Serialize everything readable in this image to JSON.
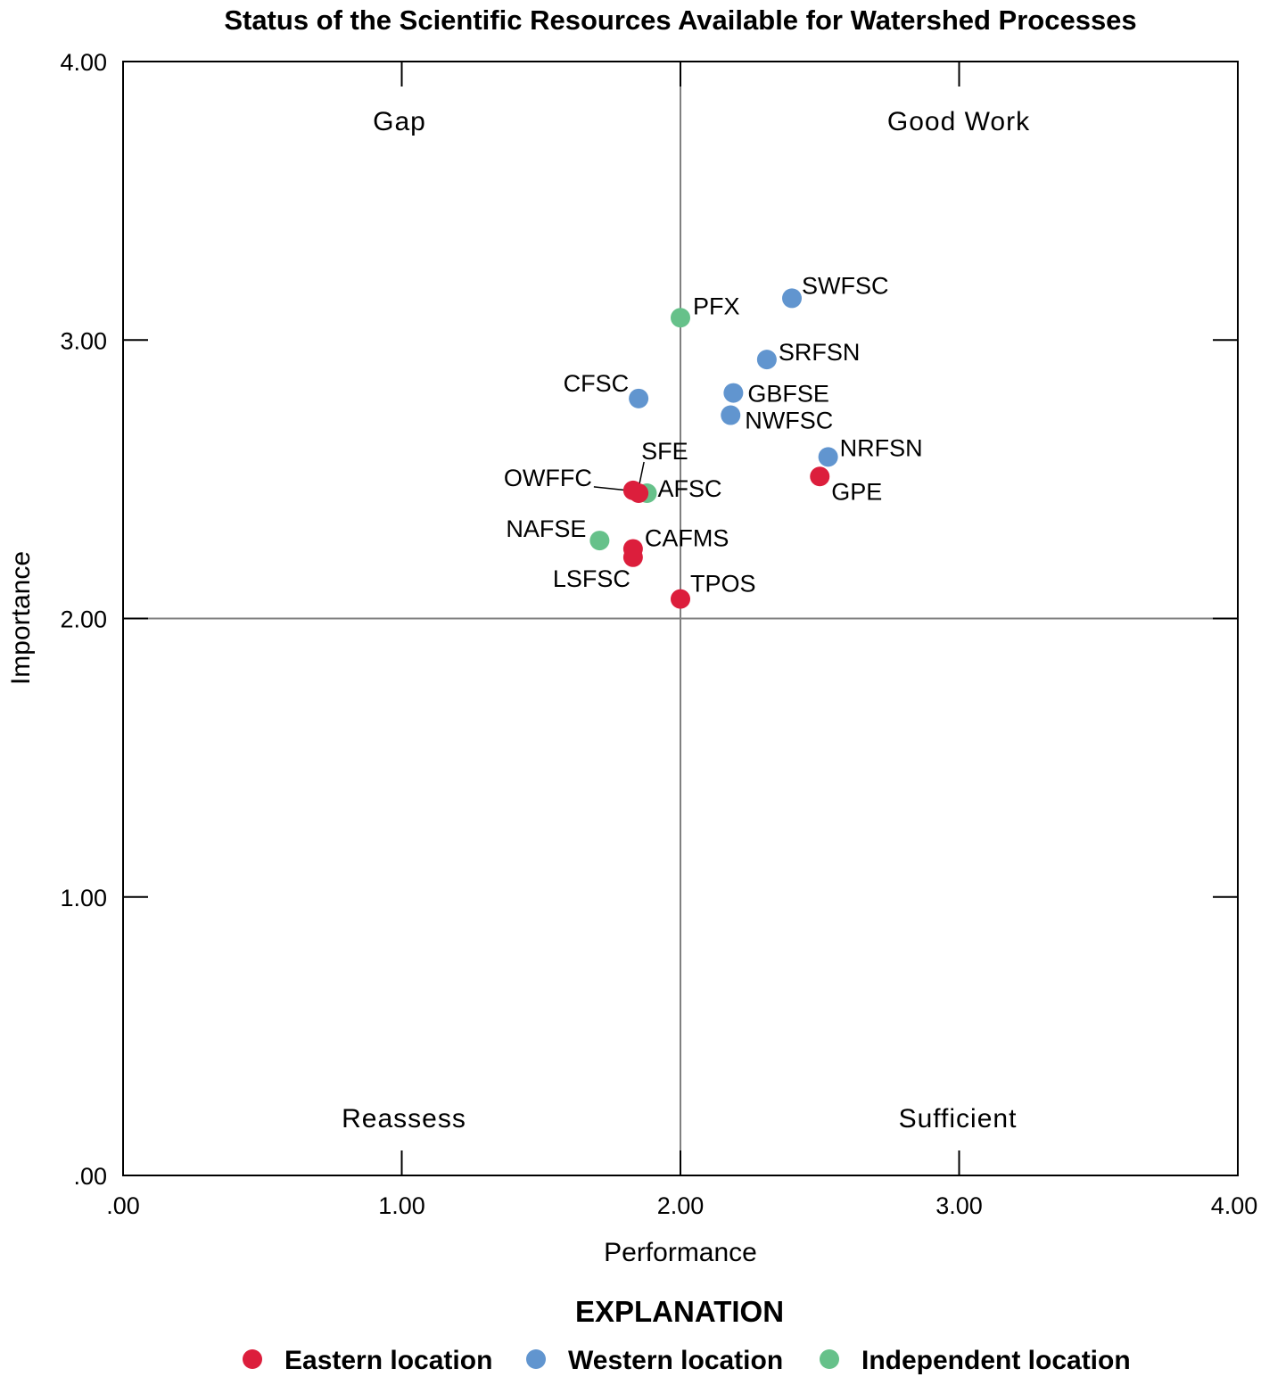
{
  "chart_data": {
    "type": "scatter",
    "title": "Status of the Scientific Resources Available for Watershed Processes",
    "xlabel": "Performance",
    "ylabel": "Importance",
    "xlim": [
      0,
      4
    ],
    "ylim": [
      0,
      4
    ],
    "x_ticks": [
      0,
      1,
      2,
      3,
      4
    ],
    "x_tick_labels": [
      ".00",
      "1.00",
      "2.00",
      "3.00",
      "4.00"
    ],
    "y_ticks": [
      0,
      1,
      2,
      3,
      4
    ],
    "y_tick_labels": [
      ".00",
      "1.00",
      "2.00",
      "3.00",
      "4.00"
    ],
    "grid": false,
    "quadrant_dividers": {
      "x": 2.0,
      "y": 2.0
    },
    "quadrant_labels": {
      "top_left": "Gap",
      "top_right": "Good Work",
      "bottom_left": "Reassess",
      "bottom_right": "Sufficient"
    },
    "legend": {
      "title": "EXPLANATION",
      "placement": "bottom",
      "entries": [
        {
          "key": "eastern",
          "label": "Eastern location",
          "color": "#dc1e3c"
        },
        {
          "key": "western",
          "label": "Western location",
          "color": "#6195cf"
        },
        {
          "key": "independent",
          "label": "Independent location",
          "color": "#66c18a"
        }
      ]
    },
    "points": [
      {
        "label": "PFX",
        "x": 2.0,
        "y": 3.08,
        "group": "independent"
      },
      {
        "label": "SWFSC",
        "x": 2.4,
        "y": 3.15,
        "group": "western"
      },
      {
        "label": "SRFSN",
        "x": 2.31,
        "y": 2.93,
        "group": "western"
      },
      {
        "label": "CFSC",
        "x": 1.85,
        "y": 2.79,
        "group": "western"
      },
      {
        "label": "GBFSE",
        "x": 2.19,
        "y": 2.81,
        "group": "western"
      },
      {
        "label": "NWFSC",
        "x": 2.18,
        "y": 2.73,
        "group": "western"
      },
      {
        "label": "NRFSN",
        "x": 2.53,
        "y": 2.58,
        "group": "western"
      },
      {
        "label": "GPE",
        "x": 2.5,
        "y": 2.51,
        "group": "eastern"
      },
      {
        "label": "AFSC",
        "x": 1.88,
        "y": 2.45,
        "group": "independent"
      },
      {
        "label": "OWFFC",
        "x": 1.83,
        "y": 2.46,
        "group": "eastern"
      },
      {
        "label": "SFE",
        "x": 1.85,
        "y": 2.45,
        "group": "eastern"
      },
      {
        "label": "NAFSE",
        "x": 1.71,
        "y": 2.28,
        "group": "independent"
      },
      {
        "label": "CAFMS",
        "x": 1.83,
        "y": 2.25,
        "group": "eastern"
      },
      {
        "label": "LSFSC",
        "x": 1.83,
        "y": 2.22,
        "group": "eastern"
      },
      {
        "label": "TPOS",
        "x": 2.0,
        "y": 2.07,
        "group": "eastern"
      }
    ]
  }
}
